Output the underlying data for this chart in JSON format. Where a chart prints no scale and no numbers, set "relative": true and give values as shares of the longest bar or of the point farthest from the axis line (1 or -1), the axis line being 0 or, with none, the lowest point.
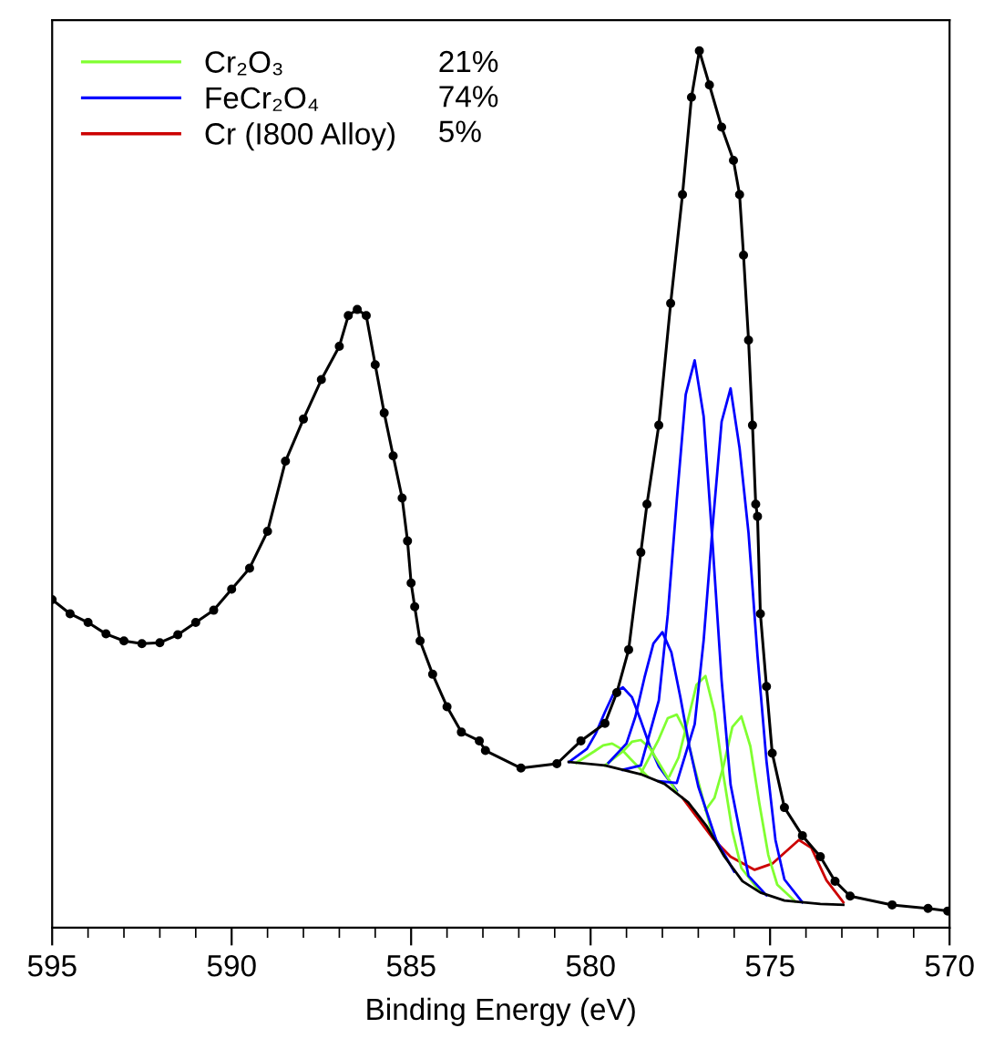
{
  "chart_data": {
    "type": "line",
    "xlabel": "Binding Energy (eV)",
    "relative": true,
    "xlim": [
      595,
      570
    ],
    "xticks": [
      595,
      590,
      585,
      580,
      575,
      570
    ],
    "grid": false,
    "legend": "top left",
    "annotations": [
      "21%",
      "74%",
      "5%"
    ],
    "series": [
      {
        "name": "Cr₂O₃",
        "color": "#80ff30",
        "x": [
          580.4,
          579.9,
          579.65,
          579.4,
          579.15,
          578.9,
          578.4
        ],
        "values": [
          0.188,
          0.201,
          0.208,
          0.21,
          0.204,
          0.193,
          0.172
        ]
      },
      {
        "name": "FeCr₂O₄",
        "color": "#0000ff",
        "x": [
          580.6,
          580.1,
          579.85,
          579.6,
          579.35,
          579.1,
          578.85,
          578.6,
          578.35,
          578.1,
          577.6
        ],
        "values": [
          0.189,
          0.204,
          0.222,
          0.246,
          0.268,
          0.274,
          0.263,
          0.236,
          0.207,
          0.184,
          0.156
        ]
      },
      {
        "name": "Cr (I800 Alloy)",
        "color": "#cc0000",
        "x": [
          577.44,
          576.6,
          576.1,
          575.43,
          574.94,
          574.2,
          573.85,
          573.43,
          572.96
        ],
        "values": [
          0.148,
          0.102,
          0.081,
          0.066,
          0.073,
          0.1,
          0.091,
          0.054,
          0.029
        ]
      },
      {
        "color": "#80ff30",
        "x": [
          579.6,
          579.1,
          578.85,
          578.6,
          578.35,
          578.1,
          577.6
        ],
        "values": [
          0.185,
          0.201,
          0.212,
          0.214,
          0.205,
          0.188,
          0.154
        ]
      },
      {
        "color": "#80ff30",
        "x": [
          578.6,
          578.1,
          577.85,
          577.6,
          577.35,
          577.1,
          576.6
        ],
        "values": [
          0.176,
          0.215,
          0.239,
          0.243,
          0.223,
          0.182,
          0.105
        ]
      },
      {
        "color": "#80ff30",
        "x": [
          577.8,
          577.55,
          577.3,
          577.05,
          576.8,
          576.55,
          576.3,
          576.05,
          575.8,
          575.3
        ],
        "values": [
          0.173,
          0.194,
          0.235,
          0.277,
          0.287,
          0.246,
          0.174,
          0.11,
          0.068,
          0.042
        ]
      },
      {
        "color": "#80ff30",
        "x": [
          576.8,
          576.55,
          576.3,
          576.05,
          575.8,
          575.55,
          575.3,
          575.05,
          574.8,
          574.3
        ],
        "values": [
          0.134,
          0.148,
          0.184,
          0.229,
          0.241,
          0.207,
          0.142,
          0.083,
          0.049,
          0.03
        ]
      },
      {
        "color": "#0000ff",
        "x": [
          579.5,
          579.0,
          578.75,
          578.5,
          578.25,
          578.0,
          577.75,
          577.5,
          577.25,
          577.0,
          576.5,
          576.0
        ],
        "values": [
          0.188,
          0.21,
          0.241,
          0.285,
          0.324,
          0.337,
          0.314,
          0.263,
          0.207,
          0.161,
          0.1,
          0.064
        ]
      },
      {
        "color": "#0000ff",
        "x": [
          579.1,
          578.6,
          578.1,
          577.85,
          577.6,
          577.35,
          577.1,
          576.85,
          576.6,
          576.35,
          576.1,
          575.6,
          575.1
        ],
        "values": [
          0.18,
          0.185,
          0.259,
          0.357,
          0.487,
          0.608,
          0.647,
          0.583,
          0.437,
          0.282,
          0.163,
          0.059,
          0.037
        ]
      },
      {
        "color": "#0000ff",
        "x": [
          578.1,
          577.6,
          577.1,
          576.85,
          576.6,
          576.35,
          576.1,
          575.85,
          575.6,
          575.35,
          575.1,
          574.85,
          574.6,
          574.1
        ],
        "values": [
          0.167,
          0.165,
          0.232,
          0.328,
          0.458,
          0.577,
          0.615,
          0.547,
          0.45,
          0.31,
          0.19,
          0.1,
          0.055,
          0.029
        ]
      },
      {
        "color": "#000000",
        "x": [
          580.61,
          579.6,
          578.6,
          577.94,
          577.28,
          576.77,
          576.27,
          575.77,
          575.27,
          574.6,
          573.6,
          572.96
        ],
        "values": [
          0.189,
          0.185,
          0.175,
          0.164,
          0.143,
          0.116,
          0.081,
          0.053,
          0.04,
          0.031,
          0.027,
          0.026
        ]
      },
      {
        "color": "#000000",
        "marker": "circle",
        "x": [
          595,
          594.5,
          594,
          593.5,
          593,
          592.5,
          592,
          591.5,
          591,
          590.5,
          590,
          589.5,
          589,
          588.5,
          588,
          587.5,
          587,
          586.75,
          586.5,
          586.25,
          586,
          585.75,
          585.5,
          585.25,
          585.1,
          585.0,
          584.9,
          584.75,
          584.4,
          584.0,
          583.6,
          583.1,
          582.93,
          581.94,
          580.94,
          580.27,
          579.6,
          579.27,
          578.94,
          578.6,
          578.43,
          578.1,
          577.77,
          577.44,
          577.19,
          576.97,
          576.69,
          576.35,
          576.02,
          575.85,
          575.74,
          575.6,
          575.49,
          575.4,
          575.35,
          575.27,
          575.1,
          574.94,
          574.6,
          574.1,
          573.6,
          573.19,
          572.77,
          571.6,
          570.6,
          570.05
        ],
        "values": [
          0.374,
          0.358,
          0.348,
          0.335,
          0.327,
          0.324,
          0.325,
          0.334,
          0.348,
          0.362,
          0.386,
          0.41,
          0.452,
          0.532,
          0.58,
          0.625,
          0.663,
          0.698,
          0.705,
          0.698,
          0.642,
          0.587,
          0.538,
          0.49,
          0.441,
          0.393,
          0.366,
          0.327,
          0.289,
          0.252,
          0.223,
          0.213,
          0.202,
          0.182,
          0.187,
          0.213,
          0.233,
          0.268,
          0.317,
          0.428,
          0.483,
          0.573,
          0.712,
          0.836,
          0.947,
          1.0,
          0.961,
          0.913,
          0.875,
          0.836,
          0.767,
          0.67,
          0.573,
          0.483,
          0.469,
          0.358,
          0.275,
          0.199,
          0.137,
          0.105,
          0.081,
          0.053,
          0.036,
          0.026,
          0.022,
          0.019
        ]
      }
    ]
  }
}
